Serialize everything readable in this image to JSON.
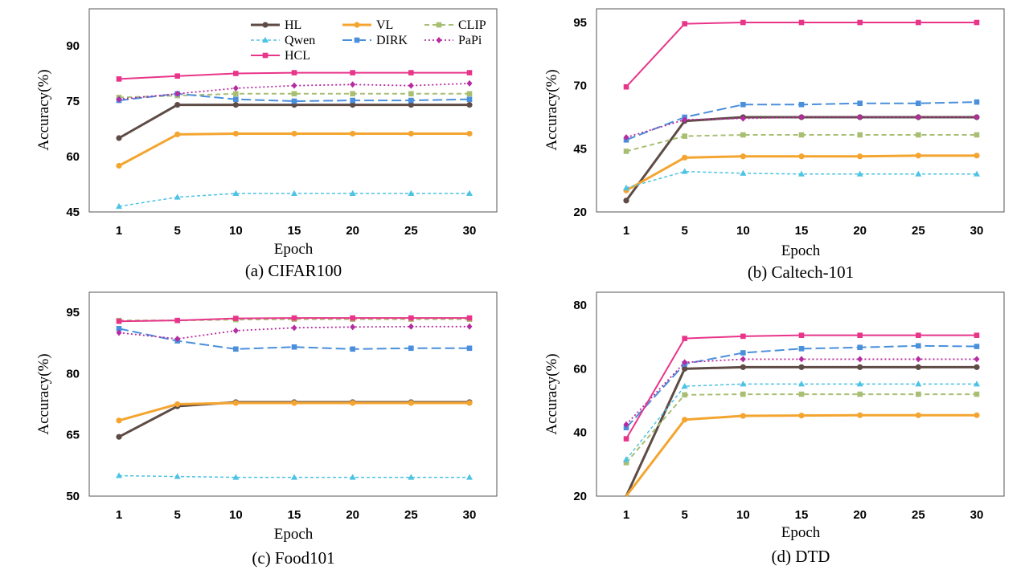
{
  "chart_data": [
    {
      "type": "line",
      "caption": "(a) CIFAR100",
      "xlabel": "Epoch",
      "ylabel": "Accuracy(%)",
      "categories": [
        "1",
        "5",
        "10",
        "15",
        "20",
        "25",
        "30"
      ],
      "ylim": [
        45,
        100
      ],
      "yticks": [
        45,
        60,
        75,
        90
      ],
      "show_legend": true,
      "series": [
        {
          "name": "HL",
          "values": [
            65.0,
            74.0,
            74.0,
            74.0,
            74.0,
            74.0,
            74.0
          ]
        },
        {
          "name": "VL",
          "values": [
            57.5,
            66.0,
            66.2,
            66.2,
            66.2,
            66.2,
            66.2
          ]
        },
        {
          "name": "CLIP",
          "values": [
            76.0,
            76.5,
            77.0,
            77.0,
            77.0,
            77.0,
            77.0
          ]
        },
        {
          "name": "Qwen",
          "values": [
            46.5,
            49.0,
            50.0,
            50.0,
            50.0,
            50.0,
            50.0
          ]
        },
        {
          "name": "DIRK",
          "values": [
            75.2,
            77.0,
            75.5,
            75.0,
            75.2,
            75.2,
            75.5
          ]
        },
        {
          "name": "PaPi",
          "values": [
            75.5,
            77.0,
            78.5,
            79.2,
            79.5,
            79.2,
            79.8
          ]
        },
        {
          "name": "HCL",
          "values": [
            81.0,
            81.8,
            82.5,
            82.7,
            82.7,
            82.7,
            82.7
          ]
        }
      ]
    },
    {
      "type": "line",
      "caption": "(b) Caltech-101",
      "xlabel": "Epoch",
      "ylabel": "Accuracy(%)",
      "categories": [
        "1",
        "5",
        "10",
        "15",
        "20",
        "25",
        "30"
      ],
      "ylim": [
        20,
        98
      ],
      "yticks": [
        20,
        45,
        70,
        95
      ],
      "show_legend": false,
      "series": [
        {
          "name": "HL",
          "values": [
            24.5,
            56.0,
            57.5,
            57.5,
            57.5,
            57.5,
            57.5
          ]
        },
        {
          "name": "VL",
          "values": [
            28.5,
            41.5,
            42.0,
            42.0,
            42.0,
            42.3,
            42.3
          ]
        },
        {
          "name": "CLIP",
          "values": [
            44.0,
            50.0,
            50.5,
            50.5,
            50.5,
            50.5,
            50.5
          ]
        },
        {
          "name": "Qwen",
          "values": [
            29.5,
            36.0,
            35.3,
            35.0,
            35.0,
            35.0,
            35.0
          ]
        },
        {
          "name": "DIRK",
          "values": [
            48.5,
            57.5,
            62.5,
            62.5,
            63.0,
            63.0,
            63.5
          ]
        },
        {
          "name": "PaPi",
          "values": [
            49.5,
            56.5,
            57.0,
            57.5,
            57.5,
            57.5,
            57.5
          ]
        },
        {
          "name": "HCL",
          "values": [
            69.5,
            94.5,
            95.0,
            95.0,
            95.0,
            95.0,
            95.0
          ]
        }
      ]
    },
    {
      "type": "line",
      "caption": "(c) Food101",
      "xlabel": "Epoch",
      "ylabel": "Accuracy(%)",
      "categories": [
        "1",
        "5",
        "10",
        "15",
        "20",
        "25",
        "30"
      ],
      "ylim": [
        50,
        97
      ],
      "yticks": [
        50,
        65,
        80,
        95
      ],
      "show_legend": false,
      "series": [
        {
          "name": "HL",
          "values": [
            64.5,
            72.0,
            73.0,
            73.0,
            73.0,
            73.0,
            73.0
          ]
        },
        {
          "name": "VL",
          "values": [
            68.5,
            72.5,
            72.8,
            72.8,
            72.8,
            72.8,
            72.8
          ]
        },
        {
          "name": "CLIP",
          "values": [
            93.0,
            93.0,
            93.2,
            93.3,
            93.3,
            93.3,
            93.3
          ]
        },
        {
          "name": "Qwen",
          "values": [
            55.0,
            54.8,
            54.6,
            54.6,
            54.6,
            54.6,
            54.6
          ]
        },
        {
          "name": "DIRK",
          "values": [
            91.0,
            88.0,
            86.0,
            86.5,
            86.0,
            86.2,
            86.2
          ]
        },
        {
          "name": "PaPi",
          "values": [
            90.0,
            88.5,
            90.5,
            91.2,
            91.4,
            91.5,
            91.5
          ]
        },
        {
          "name": "HCL",
          "values": [
            92.8,
            93.0,
            93.5,
            93.6,
            93.6,
            93.6,
            93.6
          ]
        }
      ]
    },
    {
      "type": "line",
      "caption": "(d) DTD",
      "xlabel": "Epoch",
      "ylabel": "Accuracy(%)",
      "categories": [
        "1",
        "5",
        "10",
        "15",
        "20",
        "25",
        "30"
      ],
      "ylim": [
        20,
        82
      ],
      "yticks": [
        20,
        40,
        60,
        80
      ],
      "show_legend": false,
      "series": [
        {
          "name": "HL",
          "values": [
            19.5,
            60.0,
            60.5,
            60.5,
            60.5,
            60.5,
            60.5
          ]
        },
        {
          "name": "VL",
          "values": [
            19.0,
            44.0,
            45.2,
            45.3,
            45.4,
            45.4,
            45.4
          ]
        },
        {
          "name": "CLIP",
          "values": [
            30.5,
            51.8,
            52.0,
            52.0,
            52.0,
            52.0,
            52.0
          ]
        },
        {
          "name": "Qwen",
          "values": [
            31.5,
            54.5,
            55.2,
            55.2,
            55.2,
            55.2,
            55.2
          ]
        },
        {
          "name": "DIRK",
          "values": [
            41.5,
            61.5,
            65.0,
            66.3,
            66.7,
            67.2,
            67.0
          ]
        },
        {
          "name": "PaPi",
          "values": [
            42.5,
            62.0,
            63.0,
            63.0,
            63.0,
            63.0,
            63.0
          ]
        },
        {
          "name": "HCL",
          "values": [
            38.0,
            69.5,
            70.2,
            70.5,
            70.5,
            70.5,
            70.5
          ]
        }
      ]
    }
  ],
  "series_styles": [
    {
      "name": "HL",
      "color": "#5E4B45",
      "dash": "",
      "marker": "circle",
      "width": 3
    },
    {
      "name": "VL",
      "color": "#F4A530",
      "dash": "",
      "marker": "circle",
      "width": 3
    },
    {
      "name": "CLIP",
      "color": "#A8BF73",
      "dash": "6,4",
      "marker": "square",
      "width": 2
    },
    {
      "name": "Qwen",
      "color": "#4DC3E4",
      "dash": "4,3",
      "marker": "triangle",
      "width": 1.5
    },
    {
      "name": "DIRK",
      "color": "#4A8FDC",
      "dash": "12,5",
      "marker": "square",
      "width": 2
    },
    {
      "name": "PaPi",
      "color": "#B62CA0",
      "dash": "2,3",
      "marker": "diamond",
      "width": 1.8
    },
    {
      "name": "HCL",
      "color": "#E8358A",
      "dash": "",
      "marker": "square",
      "width": 2
    }
  ]
}
